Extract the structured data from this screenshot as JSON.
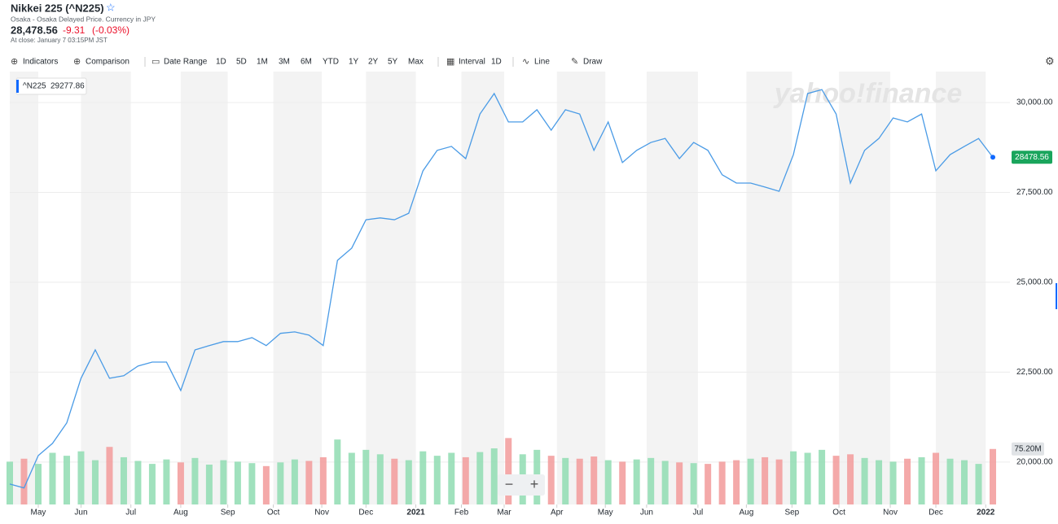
{
  "header": {
    "title": "Nikkei 225 (^N225)",
    "subtitle": "Osaka - Osaka Delayed Price. Currency in JPY",
    "price": "28,478.56",
    "change": "-9.31",
    "change_percent": "(-0.03%)",
    "close_time": "At close: January 7 03:15PM JST"
  },
  "toolbar": [
    "Indicators",
    "Comparison",
    "Date Range",
    "1D",
    "5D",
    "1M",
    "3M",
    "6M",
    "YTD",
    "1Y",
    "2Y",
    "5Y",
    "Max",
    "Interval",
    "1D",
    "Line",
    "Draw"
  ],
  "zoom": [
    "−",
    "+"
  ],
  "watermark": "yahoo!finance",
  "chart_data": {
    "type": "line",
    "series": [
      {
        "name": "^N225",
        "color": "#4a9be6",
        "crosshair_value": 29277.86,
        "values": [
          19390,
          19280,
          20180,
          20520,
          21090,
          22330,
          23120,
          22330,
          22400,
          22670,
          22780,
          22780,
          21990,
          23120,
          23240,
          23350,
          23350,
          23460,
          23240,
          23580,
          23620,
          23530,
          23240,
          25610,
          25950,
          26740,
          26790,
          26740,
          26920,
          28100,
          28670,
          28780,
          28440,
          29680,
          30250,
          29460,
          29460,
          29800,
          29230,
          29800,
          29680,
          28670,
          29460,
          28330,
          28670,
          28890,
          29000,
          28440,
          28890,
          28670,
          27990,
          27760,
          27760,
          27650,
          27530,
          28550,
          30250,
          30360,
          29680,
          27760,
          28670,
          29000,
          29570,
          29460,
          29680,
          28100,
          28550,
          28780,
          29000,
          28478.56
        ],
        "last_label": "28478.56"
      }
    ],
    "xlim": [
      0,
      70.2
    ],
    "xticks": [
      {
        "value": 2.0,
        "label": "May"
      },
      {
        "value": 5.0,
        "label": "Jun"
      },
      {
        "value": 8.5,
        "label": "Jul"
      },
      {
        "value": 12.0,
        "label": "Aug"
      },
      {
        "value": 15.3,
        "label": "Sep"
      },
      {
        "value": 18.5,
        "label": "Oct"
      },
      {
        "value": 21.9,
        "label": "Nov"
      },
      {
        "value": 25.0,
        "label": "Dec"
      },
      {
        "value": 28.5,
        "label": "2021"
      },
      {
        "value": 31.7,
        "label": "Feb"
      },
      {
        "value": 34.7,
        "label": "Mar"
      },
      {
        "value": 38.4,
        "label": "Apr"
      },
      {
        "value": 41.8,
        "label": "May"
      },
      {
        "value": 44.7,
        "label": "Jun"
      },
      {
        "value": 48.3,
        "label": "Jul"
      },
      {
        "value": 51.7,
        "label": "Aug"
      },
      {
        "value": 54.9,
        "label": "Sep"
      },
      {
        "value": 58.2,
        "label": "Oct"
      },
      {
        "value": 61.8,
        "label": "Nov"
      },
      {
        "value": 65.0,
        "label": "Dec"
      },
      {
        "value": 68.5,
        "label": "2022"
      }
    ],
    "ylim": [
      18820,
      30860
    ],
    "yticks": [
      {
        "value": 20000,
        "label": "20,000.00"
      },
      {
        "value": 22500,
        "label": "22,500.00"
      },
      {
        "value": 25000,
        "label": "25,000.00"
      },
      {
        "value": 27500,
        "label": "27,500.00"
      },
      {
        "value": 30000,
        "label": "30,000.00"
      }
    ],
    "grid": true,
    "volume": {
      "up_color": "#8fdcb2",
      "down_color": "#f29a9a",
      "ylim": [
        0,
        140
      ],
      "values": [
        58,
        62,
        55,
        70,
        66,
        72,
        60,
        78,
        64,
        59,
        55,
        61,
        57,
        63,
        54,
        60,
        58,
        56,
        52,
        57,
        61,
        59,
        64,
        88,
        70,
        74,
        68,
        62,
        60,
        72,
        66,
        70,
        64,
        71,
        76,
        90,
        68,
        74,
        66,
        63,
        62,
        65,
        60,
        58,
        61,
        63,
        59,
        57,
        56,
        55,
        58,
        60,
        62,
        64,
        61,
        72,
        70,
        74,
        66,
        68,
        63,
        60,
        58,
        62,
        64,
        70,
        62,
        60,
        55,
        75.2
      ],
      "last": {
        "value": 75.2,
        "label": "75.20M"
      }
    }
  }
}
